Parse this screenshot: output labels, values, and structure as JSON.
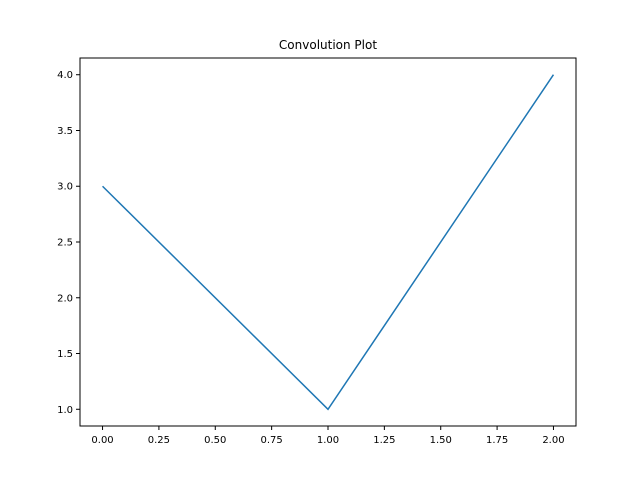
{
  "chart_data": {
    "type": "line",
    "title": "Convolution Plot",
    "xlabel": "",
    "ylabel": "",
    "x": [
      0,
      1,
      2
    ],
    "series": [
      {
        "values": [
          3,
          1,
          4
        ],
        "color": "#1f77b4"
      }
    ],
    "xlim": [
      -0.1,
      2.1
    ],
    "ylim": [
      0.85,
      4.15
    ],
    "x_ticks": [
      0.0,
      0.25,
      0.5,
      0.75,
      1.0,
      1.25,
      1.5,
      1.75,
      2.0
    ],
    "x_tick_labels": [
      "0.00",
      "0.25",
      "0.50",
      "0.75",
      "1.00",
      "1.25",
      "1.50",
      "1.75",
      "2.00"
    ],
    "y_ticks": [
      1.0,
      1.5,
      2.0,
      2.5,
      3.0,
      3.5,
      4.0
    ],
    "y_tick_labels": [
      "1.0",
      "1.5",
      "2.0",
      "2.5",
      "3.0",
      "3.5",
      "4.0"
    ],
    "grid": false,
    "legend": false
  }
}
